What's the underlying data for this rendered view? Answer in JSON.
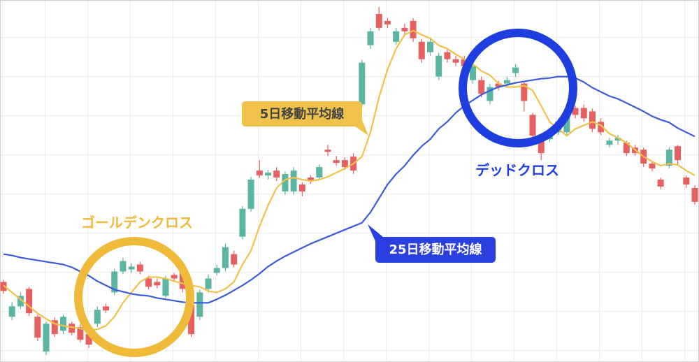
{
  "chart_data": {
    "type": "candlestick",
    "ylim": [
      0,
      520
    ],
    "grid": true,
    "up_color": "#5bb5a2",
    "down_color": "#e5605f",
    "annotations": [
      "ゴールデンクロス",
      "デッドクロス"
    ],
    "open": [
      115,
      65,
      80,
      105,
      65,
      15,
      60,
      45,
      55,
      50,
      40,
      55,
      80,
      100,
      130,
      133,
      140,
      120,
      115,
      95,
      125,
      135,
      82,
      65,
      105,
      128,
      135,
      155,
      180,
      220,
      275,
      268,
      275,
      245,
      245,
      255,
      265,
      265,
      305,
      290,
      290,
      295,
      370,
      455,
      500,
      490,
      460,
      480,
      490,
      460,
      445,
      410,
      445,
      435,
      435,
      405,
      405,
      375,
      400,
      400,
      415,
      400,
      355,
      320,
      320,
      330,
      330,
      365,
      365,
      360,
      345,
      312,
      318,
      315,
      308,
      305,
      285,
      262,
      282,
      310,
      265,
      250
    ],
    "high": [
      118,
      86,
      100,
      108,
      68,
      58,
      64,
      68,
      58,
      54,
      44,
      80,
      84,
      134,
      150,
      142,
      144,
      124,
      120,
      124,
      128,
      140,
      86,
      104,
      126,
      140,
      170,
      160,
      224,
      266,
      290,
      276,
      280,
      274,
      280,
      258,
      268,
      284,
      312,
      296,
      294,
      300,
      434,
      480,
      510,
      494,
      480,
      486,
      494,
      464,
      464,
      444,
      450,
      440,
      440,
      428,
      410,
      400,
      404,
      410,
      428,
      404,
      358,
      324,
      330,
      350,
      360,
      368,
      370,
      364,
      350,
      322,
      326,
      318,
      312,
      308,
      288,
      265,
      308,
      312,
      268,
      254
    ],
    "low": [
      98,
      60,
      76,
      66,
      30,
      10,
      36,
      40,
      38,
      28,
      20,
      50,
      70,
      96,
      126,
      128,
      126,
      104,
      106,
      92,
      116,
      100,
      36,
      60,
      100,
      124,
      130,
      136,
      176,
      216,
      264,
      262,
      260,
      240,
      240,
      238,
      256,
      262,
      296,
      282,
      276,
      270,
      366,
      450,
      476,
      480,
      456,
      470,
      460,
      430,
      440,
      405,
      430,
      425,
      420,
      400,
      380,
      370,
      390,
      395,
      410,
      360,
      320,
      290,
      316,
      326,
      326,
      350,
      345,
      330,
      326,
      308,
      312,
      296,
      296,
      280,
      274,
      248,
      278,
      284,
      250,
      226
    ],
    "close": [
      102,
      80,
      95,
      70,
      35,
      55,
      40,
      65,
      42,
      32,
      25,
      75,
      74,
      130,
      145,
      137,
      130,
      108,
      110,
      120,
      120,
      105,
      40,
      100,
      120,
      135,
      165,
      140,
      220,
      262,
      268,
      272,
      265,
      270,
      275,
      245,
      260,
      280,
      302,
      286,
      280,
      275,
      430,
      475,
      480,
      485,
      475,
      475,
      465,
      435,
      460,
      440,
      435,
      430,
      425,
      425,
      385,
      395,
      395,
      405,
      423,
      375,
      325,
      300,
      325,
      345,
      355,
      355,
      350,
      335,
      330,
      318,
      322,
      300,
      300,
      285,
      278,
      252,
      305,
      290,
      255,
      230
    ],
    "series": [
      {
        "name": "5日移動平均線",
        "color": "#f0c24a",
        "values": [
          110,
          100,
          90,
          80,
          70,
          62,
          55,
          52,
          50,
          48,
          46,
          47,
          52,
          65,
          85,
          100,
          115,
          122,
          122,
          120,
          116,
          113,
          110,
          108,
          102,
          100,
          105,
          115,
          140,
          160,
          195,
          225,
          250,
          262,
          265,
          262,
          260,
          262,
          266,
          272,
          278,
          285,
          295,
          330,
          380,
          420,
          450,
          470,
          476,
          470,
          465,
          455,
          450,
          442,
          435,
          428,
          418,
          412,
          400,
          395,
          395,
          397,
          390,
          368,
          345,
          335,
          325,
          335,
          340,
          345,
          340,
          328,
          322,
          315,
          305,
          295,
          288,
          282,
          285,
          283,
          275,
          268
        ]
      },
      {
        "name": "25日移動平均線",
        "color": "#3b5bdb",
        "values": [
          155,
          153,
          150,
          148,
          146,
          144,
          142,
          140,
          136,
          130,
          124,
          116,
          110,
          104,
          101,
          98,
          96,
          95,
          92,
          90,
          88,
          86,
          85,
          85,
          85,
          90,
          96,
          103,
          110,
          118,
          127,
          137,
          145,
          152,
          158,
          164,
          170,
          175,
          180,
          185,
          190,
          195,
          200,
          215,
          235,
          255,
          270,
          282,
          297,
          310,
          320,
          335,
          345,
          358,
          368,
          376,
          384,
          390,
          395,
          398,
          401,
          403,
          405,
          407,
          408,
          410,
          410,
          408,
          402,
          394,
          388,
          382,
          378,
          372,
          366,
          360,
          353,
          348,
          344,
          336,
          330,
          324
        ]
      }
    ]
  }
}
